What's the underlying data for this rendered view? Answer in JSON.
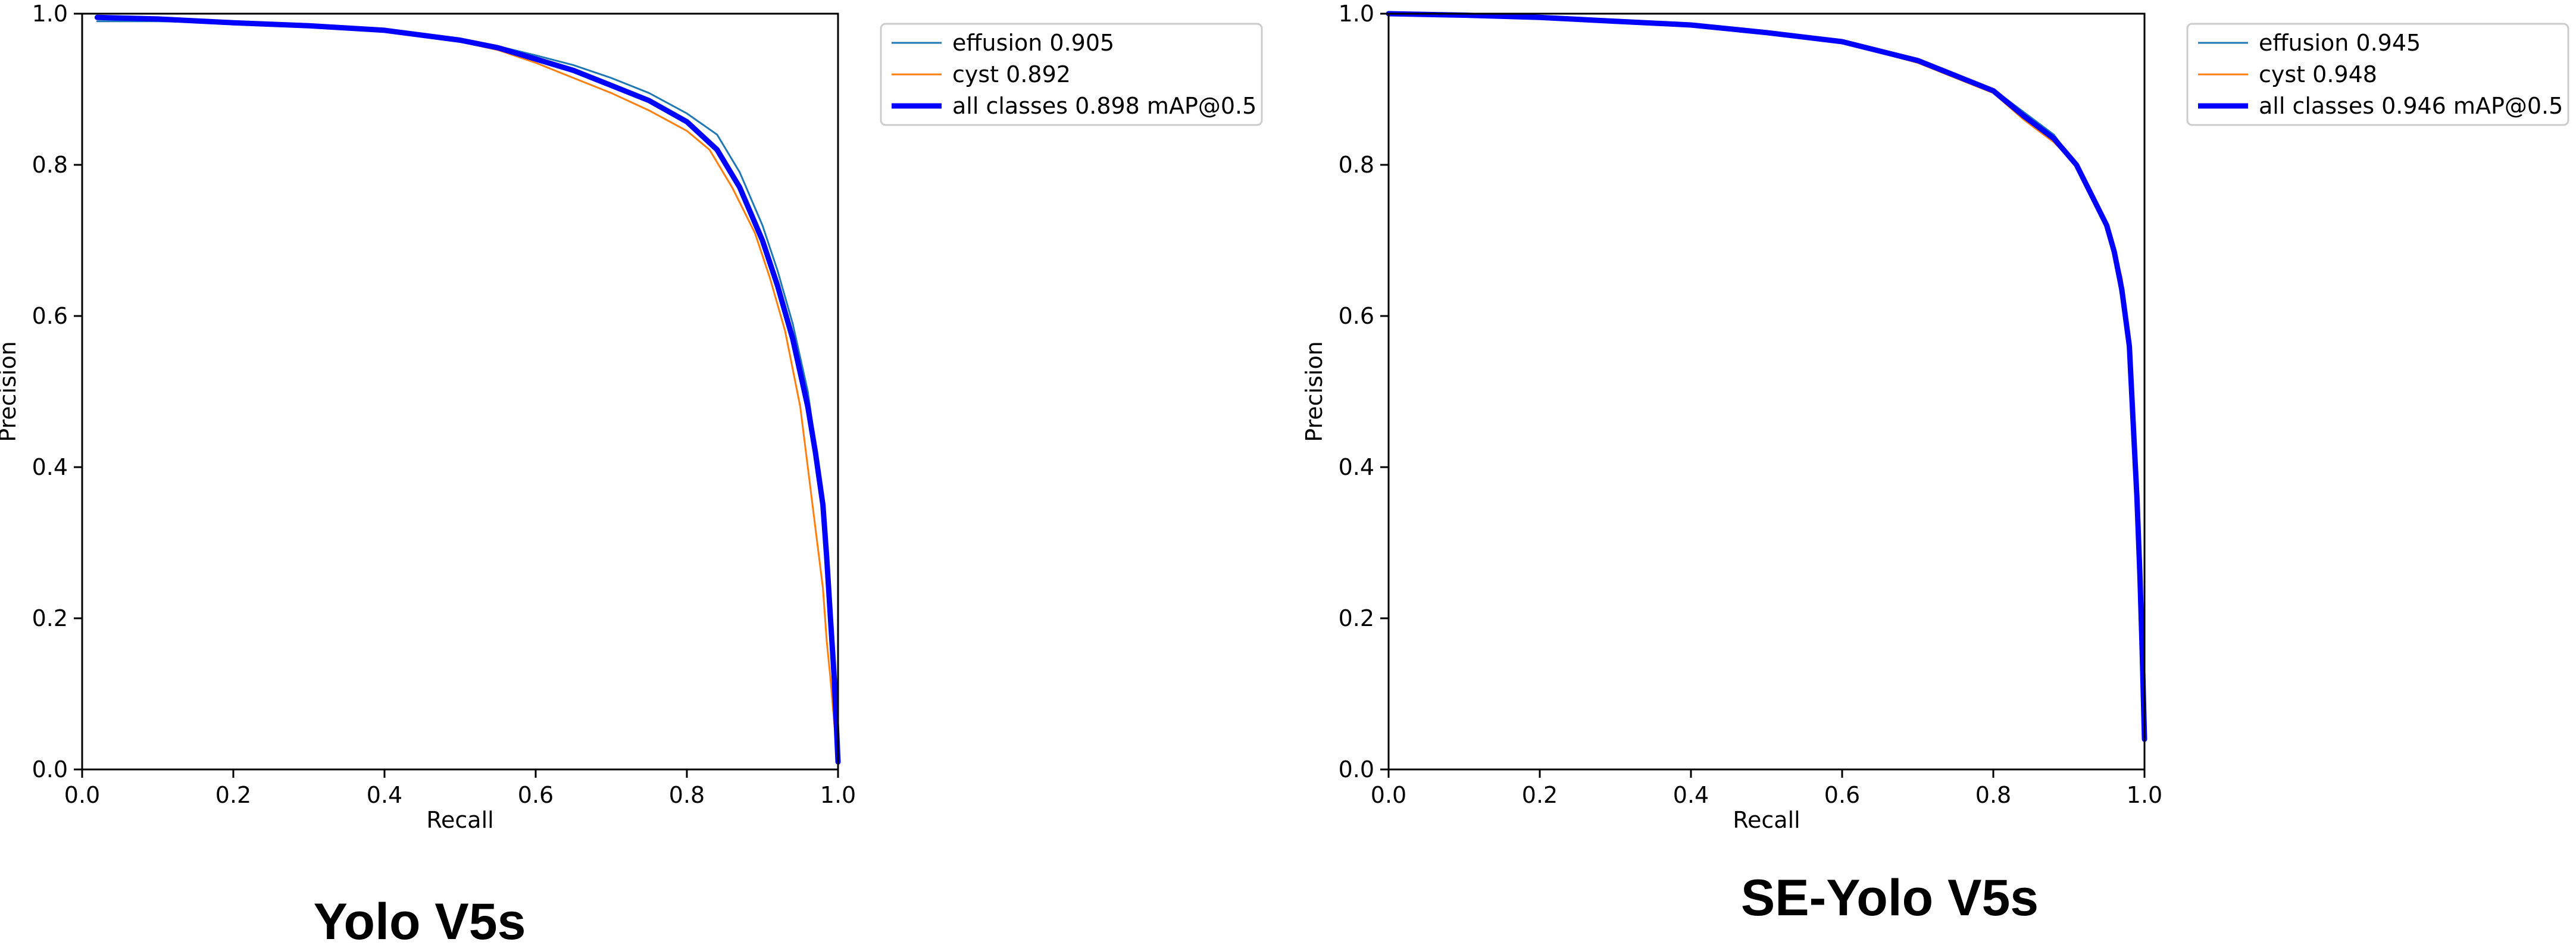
{
  "chart_data": [
    {
      "type": "line",
      "caption": "Yolo V5s",
      "xlabel": "Recall",
      "ylabel": "Precision",
      "xlim": [
        0,
        1
      ],
      "ylim": [
        0,
        1
      ],
      "xticks": [
        "0.0",
        "0.2",
        "0.4",
        "0.6",
        "0.8",
        "1.0"
      ],
      "yticks": [
        "0.0",
        "0.2",
        "0.4",
        "0.6",
        "0.8",
        "1.0"
      ],
      "grid": false,
      "legend_position": "outside-top-right",
      "series": [
        {
          "name": "effusion 0.905",
          "color": "#1f77b4",
          "line": "thin",
          "x": [
            0.02,
            0.03,
            0.1,
            0.2,
            0.3,
            0.4,
            0.5,
            0.55,
            0.6,
            0.65,
            0.7,
            0.75,
            0.8,
            0.84,
            0.87,
            0.9,
            0.92,
            0.94,
            0.96,
            0.97,
            0.98,
            0.985,
            0.99,
            0.995,
            1.0
          ],
          "y": [
            0.99,
            0.99,
            0.99,
            0.988,
            0.985,
            0.978,
            0.965,
            0.957,
            0.945,
            0.932,
            0.915,
            0.895,
            0.868,
            0.84,
            0.79,
            0.72,
            0.66,
            0.59,
            0.5,
            0.43,
            0.35,
            0.28,
            0.2,
            0.12,
            0.02
          ]
        },
        {
          "name": "cyst 0.892",
          "color": "#ff7f0e",
          "line": "thin",
          "x": [
            0.02,
            0.1,
            0.2,
            0.3,
            0.4,
            0.5,
            0.55,
            0.6,
            0.65,
            0.7,
            0.75,
            0.8,
            0.83,
            0.86,
            0.89,
            0.91,
            0.93,
            0.95,
            0.96,
            0.97,
            0.98,
            0.985,
            0.99,
            0.995,
            1.0
          ],
          "y": [
            0.995,
            0.993,
            0.988,
            0.984,
            0.977,
            0.963,
            0.952,
            0.935,
            0.915,
            0.895,
            0.872,
            0.845,
            0.82,
            0.77,
            0.71,
            0.65,
            0.58,
            0.48,
            0.4,
            0.32,
            0.24,
            0.17,
            0.12,
            0.06,
            0.02
          ]
        },
        {
          "name": "all classes 0.898 mAP@0.5",
          "color": "#0000ff",
          "line": "thick",
          "x": [
            0.02,
            0.1,
            0.2,
            0.3,
            0.4,
            0.5,
            0.55,
            0.6,
            0.65,
            0.7,
            0.75,
            0.8,
            0.84,
            0.87,
            0.9,
            0.92,
            0.94,
            0.96,
            0.97,
            0.98,
            0.985,
            0.99,
            0.995,
            1.0
          ],
          "y": [
            0.995,
            0.993,
            0.988,
            0.984,
            0.978,
            0.965,
            0.955,
            0.94,
            0.925,
            0.905,
            0.885,
            0.857,
            0.82,
            0.77,
            0.7,
            0.64,
            0.57,
            0.48,
            0.42,
            0.35,
            0.28,
            0.2,
            0.12,
            0.01
          ]
        }
      ]
    },
    {
      "type": "line",
      "caption": "SE-Yolo V5s",
      "xlabel": "Recall",
      "ylabel": "Precision",
      "xlim": [
        0,
        1
      ],
      "ylim": [
        0,
        1
      ],
      "xticks": [
        "0.0",
        "0.2",
        "0.4",
        "0.6",
        "0.8",
        "1.0"
      ],
      "yticks": [
        "0.0",
        "0.2",
        "0.4",
        "0.6",
        "0.8",
        "1.0"
      ],
      "grid": false,
      "legend_position": "outside-top-right",
      "series": [
        {
          "name": "effusion 0.945",
          "color": "#1f77b4",
          "line": "thin",
          "x": [
            0.0,
            0.1,
            0.2,
            0.3,
            0.4,
            0.5,
            0.6,
            0.7,
            0.75,
            0.8,
            0.84,
            0.88,
            0.91,
            0.93,
            0.95,
            0.96,
            0.97,
            0.98,
            0.985,
            0.99,
            0.994,
            0.997,
            1.0
          ],
          "y": [
            1.0,
            0.998,
            0.995,
            0.99,
            0.985,
            0.975,
            0.965,
            0.94,
            0.92,
            0.9,
            0.87,
            0.84,
            0.8,
            0.76,
            0.72,
            0.68,
            0.62,
            0.55,
            0.45,
            0.35,
            0.25,
            0.15,
            0.04
          ]
        },
        {
          "name": "cyst 0.948",
          "color": "#ff7f0e",
          "line": "thin",
          "x": [
            0.0,
            0.1,
            0.2,
            0.3,
            0.4,
            0.5,
            0.6,
            0.7,
            0.75,
            0.8,
            0.84,
            0.88,
            0.91,
            0.93,
            0.95,
            0.96,
            0.97,
            0.98,
            0.985,
            0.99,
            0.994,
            0.997,
            1.0
          ],
          "y": [
            1.0,
            0.998,
            0.995,
            0.99,
            0.985,
            0.975,
            0.962,
            0.935,
            0.915,
            0.895,
            0.86,
            0.83,
            0.8,
            0.76,
            0.72,
            0.69,
            0.65,
            0.57,
            0.47,
            0.37,
            0.26,
            0.16,
            0.04
          ]
        },
        {
          "name": "all classes 0.946 mAP@0.5",
          "color": "#0000ff",
          "line": "thick",
          "x": [
            0.0,
            0.1,
            0.2,
            0.3,
            0.4,
            0.5,
            0.6,
            0.7,
            0.75,
            0.8,
            0.84,
            0.88,
            0.91,
            0.93,
            0.95,
            0.96,
            0.97,
            0.98,
            0.985,
            0.99,
            0.994,
            0.997,
            1.0
          ],
          "y": [
            1.0,
            0.998,
            0.995,
            0.99,
            0.985,
            0.975,
            0.963,
            0.938,
            0.918,
            0.898,
            0.865,
            0.835,
            0.8,
            0.76,
            0.72,
            0.685,
            0.635,
            0.56,
            0.46,
            0.36,
            0.255,
            0.155,
            0.04
          ]
        }
      ]
    }
  ]
}
